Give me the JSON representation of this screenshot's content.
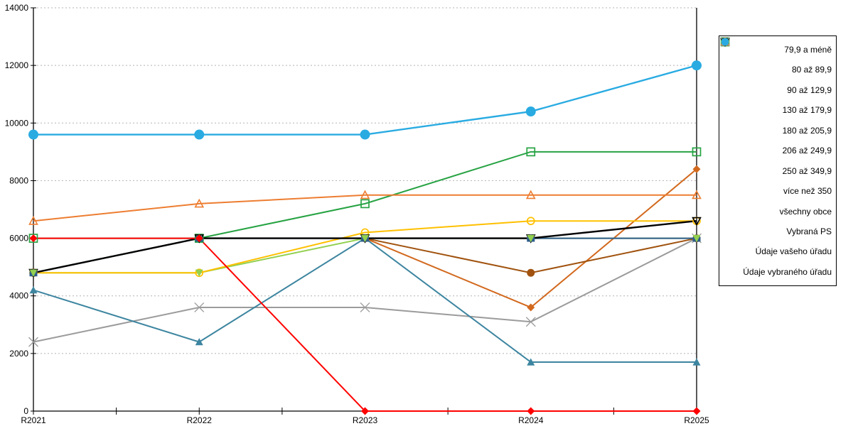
{
  "chart_data": {
    "type": "line",
    "title": "",
    "xlabel": "",
    "ylabel": "",
    "categories": [
      "R2021",
      "R2022",
      "R2023",
      "R2024",
      "R2025"
    ],
    "ylim": [
      0,
      14000
    ],
    "ytick_step": 2000,
    "ytick_labels": [
      "0",
      "2000",
      "4000",
      "6000",
      "8000",
      "10000",
      "12000",
      "14000"
    ],
    "grid": "horizontal-dashed",
    "grid_color": "#b3b3b3",
    "legend_position": "right",
    "series": [
      {
        "name": "79,9 a méně",
        "marker": "diamond",
        "color": "#D2691E",
        "values": [
          null,
          null,
          6000,
          3600,
          8400
        ]
      },
      {
        "name": "80 až 89,9",
        "marker": "circle",
        "color": "#A0520E",
        "values": [
          null,
          null,
          6000,
          4800,
          6000
        ]
      },
      {
        "name": "90 až 129,9",
        "marker": "triangle-up",
        "color": "#3D85A0",
        "values": [
          4200,
          2400,
          6000,
          1700,
          1700
        ]
      },
      {
        "name": "130 až 179,9",
        "marker": "pentagon",
        "color": "#2E5C8A",
        "values": [
          4800,
          6000,
          6000,
          6000,
          6000
        ]
      },
      {
        "name": "180 až 205,9",
        "marker": "triangle-down",
        "color": "#92D050",
        "values": [
          4800,
          4800,
          6000,
          6000,
          6000
        ]
      },
      {
        "name": "206 až 249,9",
        "marker": "square-open",
        "color": "#27A343",
        "values": [
          6000,
          6000,
          7200,
          9000,
          9000
        ]
      },
      {
        "name": "250 až 349,9",
        "marker": "circle-open",
        "color": "#FFC000",
        "values": [
          4800,
          4800,
          6200,
          6600,
          6600
        ]
      },
      {
        "name": "více než 350",
        "marker": "triangle-up-open",
        "color": "#ED7D31",
        "values": [
          6600,
          7200,
          7500,
          7500,
          7500
        ]
      },
      {
        "name": "všechny obce",
        "marker": "triangle-down-open",
        "color": "#000000",
        "values": [
          4800,
          6000,
          6000,
          6000,
          6600
        ]
      },
      {
        "name": "Vybraná PS",
        "marker": "x",
        "color": "#9B9B9B",
        "values": [
          2400,
          3600,
          3600,
          3100,
          6000
        ]
      },
      {
        "name": "Údaje vašeho úřadu",
        "marker": "diamond",
        "color": "#FF0000",
        "values": [
          6000,
          6000,
          0,
          0,
          0
        ]
      },
      {
        "name": "Údaje vybraného úřadu",
        "marker": "circle",
        "color": "#29ABE2",
        "values": [
          9600,
          9600,
          9600,
          10400,
          12000
        ]
      }
    ],
    "line_z_order": [
      9,
      0,
      1,
      2,
      5,
      4,
      6,
      3,
      7,
      8,
      10,
      11
    ],
    "marker_z_order": [
      9,
      0,
      1,
      2,
      5,
      6,
      7,
      8,
      3,
      4,
      10,
      11
    ]
  }
}
